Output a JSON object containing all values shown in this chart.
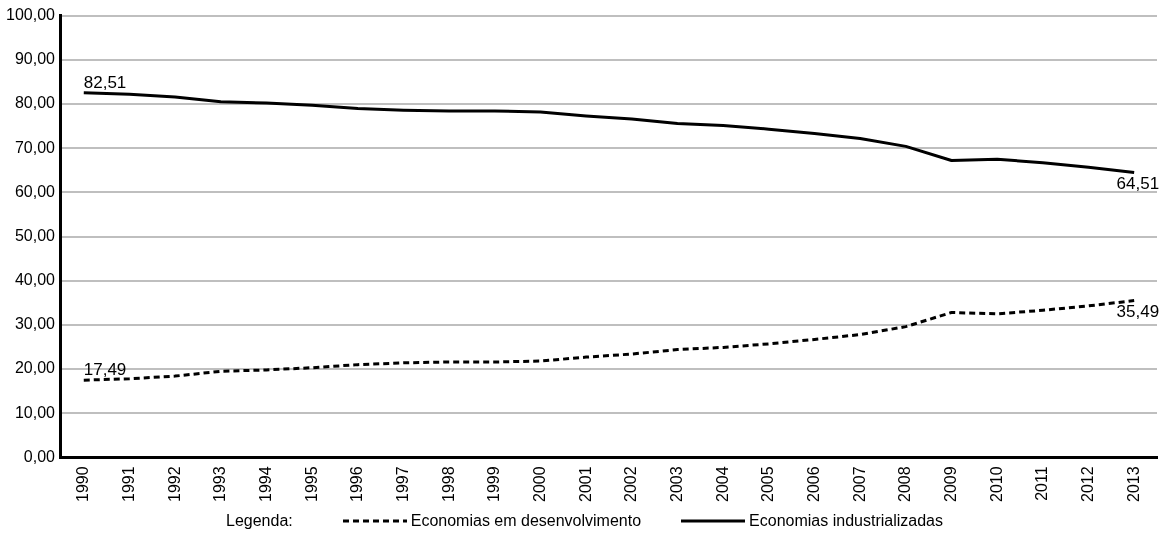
{
  "chart_data": {
    "type": "line",
    "legend_title": "Legenda:",
    "legend": "bottom",
    "grid": "y",
    "marker": "none",
    "categories": [
      "1990",
      "1991",
      "1992",
      "1993",
      "1994",
      "1995",
      "1996",
      "1997",
      "1998",
      "1999",
      "2000",
      "2001",
      "2002",
      "2003",
      "2004",
      "2005",
      "2006",
      "2007",
      "2008",
      "2009",
      "2010",
      "2011",
      "2012",
      "2013"
    ],
    "ylim": [
      0,
      100
    ],
    "yticks": [
      {
        "value": 0,
        "label": "0,00"
      },
      {
        "value": 10,
        "label": "10,00"
      },
      {
        "value": 20,
        "label": "20,00"
      },
      {
        "value": 30,
        "label": "30,00"
      },
      {
        "value": 40,
        "label": "40,00"
      },
      {
        "value": 50,
        "label": "50,00"
      },
      {
        "value": 60,
        "label": "60,00"
      },
      {
        "value": 70,
        "label": "70,00"
      },
      {
        "value": 80,
        "label": "80,00"
      },
      {
        "value": 90,
        "label": "90,00"
      },
      {
        "value": 100,
        "label": "100,00"
      }
    ],
    "series": [
      {
        "name": "Economias em desenvolvimento",
        "color": "#000000",
        "line_style": "dashed",
        "values": [
          17.49,
          17.8,
          18.4,
          19.5,
          19.8,
          20.3,
          21.0,
          21.4,
          21.6,
          21.6,
          21.8,
          22.7,
          23.4,
          24.4,
          24.9,
          25.7,
          26.7,
          27.8,
          29.6,
          32.8,
          32.5,
          33.3,
          34.3,
          35.49
        ],
        "value_labels": [
          "17,49",
          null,
          null,
          null,
          null,
          null,
          null,
          null,
          null,
          null,
          null,
          null,
          null,
          null,
          null,
          null,
          null,
          null,
          null,
          null,
          null,
          null,
          null,
          "35,49"
        ]
      },
      {
        "name": "Economias industrializadas",
        "color": "#000000",
        "line_style": "solid",
        "values": [
          82.51,
          82.2,
          81.6,
          80.5,
          80.2,
          79.7,
          79.0,
          78.6,
          78.4,
          78.4,
          78.2,
          77.3,
          76.6,
          75.6,
          75.1,
          74.3,
          73.3,
          72.2,
          70.4,
          67.2,
          67.5,
          66.7,
          65.7,
          64.51
        ],
        "value_labels": [
          "82,51",
          null,
          null,
          null,
          null,
          null,
          null,
          null,
          null,
          null,
          null,
          null,
          null,
          null,
          null,
          null,
          null,
          null,
          null,
          null,
          null,
          null,
          null,
          "64,51"
        ]
      }
    ]
  }
}
